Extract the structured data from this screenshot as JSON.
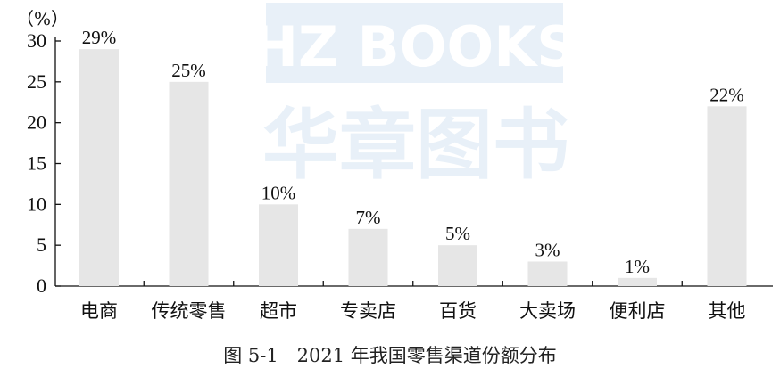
{
  "chart_data": {
    "type": "bar",
    "categories": [
      "电商",
      "传统零售",
      "超市",
      "专卖店",
      "百货",
      "大卖场",
      "便利店",
      "其他"
    ],
    "values": [
      29,
      25,
      10,
      7,
      5,
      3,
      1,
      22
    ],
    "data_labels": [
      "29%",
      "25%",
      "10%",
      "7%",
      "5%",
      "3%",
      "1%",
      "22%"
    ],
    "unit_label": "（%）",
    "ylim": [
      0,
      30
    ],
    "yticks": [
      0,
      5,
      10,
      15,
      20,
      25,
      30
    ],
    "grid": false,
    "bar_color": "#e6e6e6"
  },
  "caption": "图 5-1　2021 年我国零售渠道份额分布",
  "watermark": {
    "line1": "HZ BOOKS",
    "line2": "华章图书",
    "color": "#e8f0f8"
  }
}
